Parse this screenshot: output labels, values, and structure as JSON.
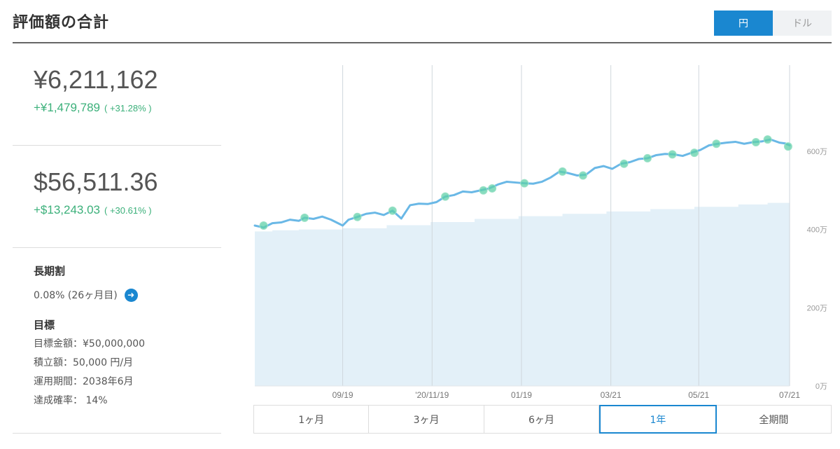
{
  "header": {
    "title": "評価額の合計",
    "currency_options": [
      {
        "label": "円",
        "active": true
      },
      {
        "label": "ドル",
        "active": false
      }
    ]
  },
  "summary": {
    "jpy": {
      "value": "¥6,211,162",
      "gain": "+¥1,479,789",
      "gain_pct": "( +31.28% )"
    },
    "usd": {
      "value": "$56,511.36",
      "gain": "+$13,243.03",
      "gain_pct": "( +30.61% )"
    }
  },
  "long_term": {
    "heading": "長期割",
    "rate": "0.08% (26ヶ月目)"
  },
  "goal": {
    "heading": "目標",
    "lines": [
      "目標金額：¥50,000,000",
      "積立額：50,000 円/月",
      "運用期間：2038年6月",
      "達成確率： 14%"
    ]
  },
  "period_tabs": [
    {
      "label": "1ヶ月",
      "active": false
    },
    {
      "label": "3ヶ月",
      "active": false
    },
    {
      "label": "6ヶ月",
      "active": false
    },
    {
      "label": "1年",
      "active": true
    },
    {
      "label": "全期間",
      "active": false
    }
  ],
  "colors": {
    "accent": "#1a87d0",
    "gain": "#3bb07a",
    "line": "#6ab8e6",
    "area": "#e3f0f8",
    "marker": "#5fd0a8"
  },
  "chart_data": {
    "type": "line",
    "x_tick_labels": [
      "09/19",
      "'20/11/19",
      "01/19",
      "03/21",
      "05/21",
      "07/21"
    ],
    "y_tick_labels": [
      "0万",
      "200万",
      "400万",
      "600万"
    ],
    "ylim": [
      0,
      820
    ],
    "x_range": [
      0,
      365
    ],
    "x_ticks": [
      60,
      121,
      182,
      243,
      303,
      365
    ],
    "y_ticks": [
      0,
      200,
      400,
      600
    ],
    "grid": "vertical",
    "series": [
      {
        "role": "valuation",
        "unit": "万円",
        "x": [
          0,
          6,
          12,
          18,
          24,
          30,
          34,
          40,
          46,
          52,
          60,
          64,
          70,
          76,
          82,
          88,
          94,
          100,
          106,
          112,
          118,
          124,
          130,
          136,
          142,
          148,
          154,
          160,
          166,
          172,
          178,
          184,
          190,
          196,
          202,
          208,
          214,
          220,
          226,
          232,
          238,
          244,
          250,
          256,
          262,
          268,
          274,
          280,
          286,
          292,
          298,
          304,
          310,
          316,
          322,
          328,
          334,
          340,
          346,
          352,
          358,
          362,
          365
        ],
        "y": [
          410,
          405,
          416,
          418,
          425,
          422,
          430,
          427,
          433,
          425,
          410,
          425,
          432,
          440,
          443,
          437,
          448,
          428,
          462,
          466,
          465,
          470,
          484,
          488,
          497,
          495,
          500,
          505,
          515,
          522,
          520,
          518,
          517,
          522,
          533,
          548,
          544,
          538,
          540,
          557,
          562,
          555,
          568,
          572,
          580,
          582,
          590,
          593,
          592,
          588,
          596,
          603,
          615,
          619,
          622,
          624,
          619,
          623,
          625,
          630,
          622,
          620,
          615
        ]
      },
      {
        "role": "principal",
        "unit": "万円",
        "x": [
          0,
          12,
          30,
          60,
          90,
          120,
          150,
          180,
          210,
          240,
          270,
          300,
          330,
          350,
          365
        ],
        "y": [
          395,
          398,
          400,
          403,
          411,
          419,
          427,
          434,
          440,
          446,
          452,
          458,
          464,
          468,
          470
        ]
      }
    ],
    "markers": [
      {
        "x": 6,
        "y": 410
      },
      {
        "x": 34,
        "y": 430
      },
      {
        "x": 70,
        "y": 432
      },
      {
        "x": 94,
        "y": 448
      },
      {
        "x": 130,
        "y": 484
      },
      {
        "x": 156,
        "y": 500
      },
      {
        "x": 162,
        "y": 505
      },
      {
        "x": 184,
        "y": 518
      },
      {
        "x": 210,
        "y": 548
      },
      {
        "x": 224,
        "y": 538
      },
      {
        "x": 252,
        "y": 568
      },
      {
        "x": 268,
        "y": 582
      },
      {
        "x": 285,
        "y": 592
      },
      {
        "x": 300,
        "y": 596
      },
      {
        "x": 315,
        "y": 619
      },
      {
        "x": 342,
        "y": 623
      },
      {
        "x": 350,
        "y": 630
      },
      {
        "x": 364,
        "y": 612
      }
    ]
  }
}
